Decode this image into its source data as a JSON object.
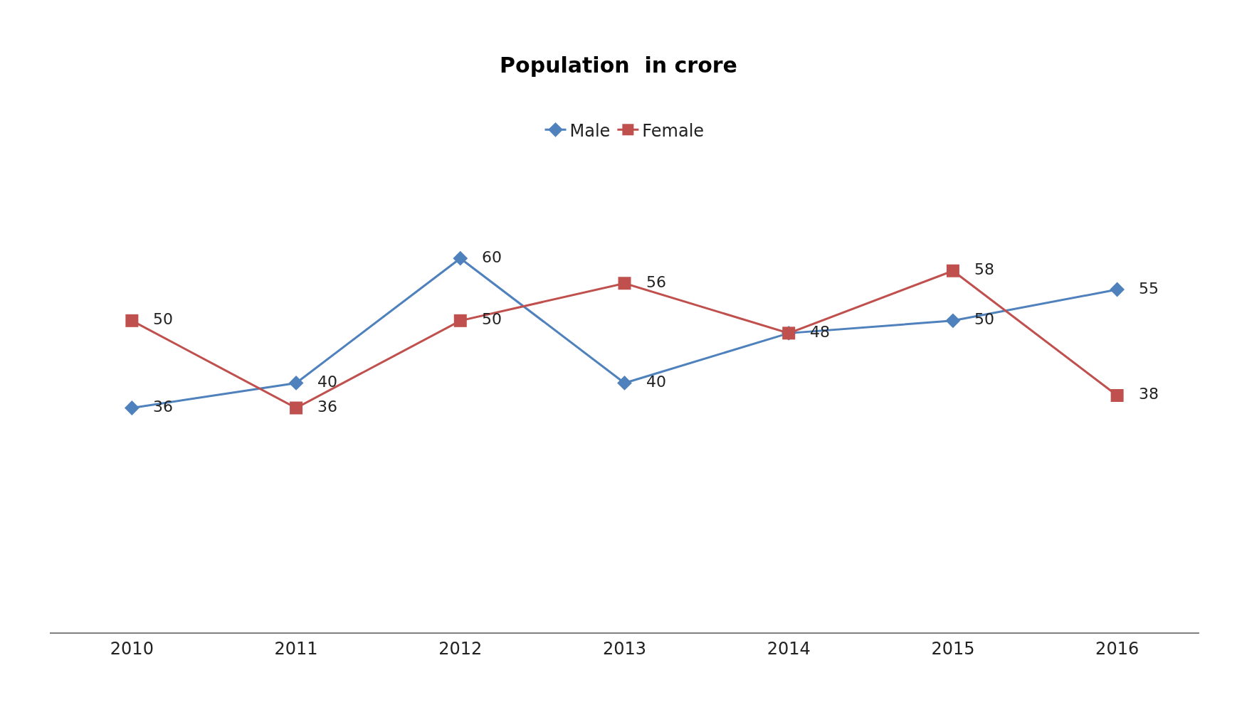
{
  "chart_data": {
    "type": "line",
    "title": "Population  in crore",
    "categories": [
      "2010",
      "2011",
      "2012",
      "2013",
      "2014",
      "2015",
      "2016"
    ],
    "series": [
      {
        "name": "Male",
        "color": "#4f81bd",
        "marker": "diamond",
        "values": [
          36,
          40,
          60,
          40,
          48,
          50,
          55
        ],
        "value_labels": [
          "36",
          "40",
          "60",
          "40",
          "48",
          "50",
          "55"
        ]
      },
      {
        "name": "Female",
        "color": "#c0504d",
        "marker": "square",
        "values": [
          50,
          36,
          50,
          56,
          48,
          58,
          38
        ],
        "value_labels": [
          "50",
          "36",
          "50",
          "56",
          null,
          "58",
          "38"
        ]
      }
    ],
    "legend": "top",
    "line_style": "solid"
  }
}
